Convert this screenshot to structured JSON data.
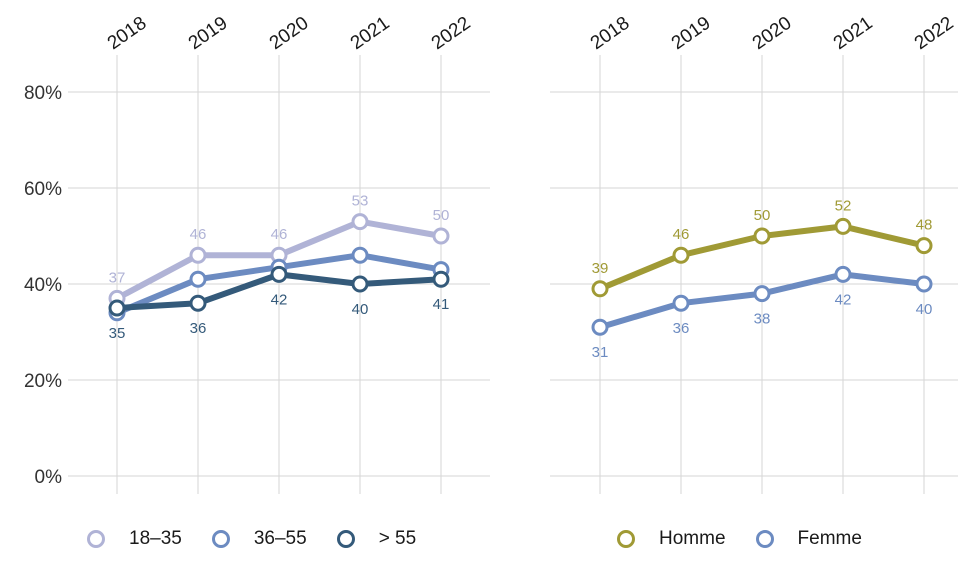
{
  "chart_data": [
    {
      "type": "line",
      "x": [
        "2018",
        "2019",
        "2020",
        "2021",
        "2022"
      ],
      "ylim": [
        0,
        80
      ],
      "yticks": [
        "0%",
        "20%",
        "40%",
        "60%",
        "80%"
      ],
      "ytick_values": [
        0,
        20,
        40,
        60,
        80
      ],
      "grid": true,
      "legend_position": "bottom",
      "series": [
        {
          "name": "18–35",
          "color": "#b0b3d6",
          "values": [
            37,
            46,
            46,
            53,
            50
          ],
          "labels": [
            "37",
            "46",
            "46",
            "53",
            "50"
          ],
          "label_pos": [
            "above",
            "above",
            "above",
            "above",
            "above"
          ],
          "labeled": [
            true,
            true,
            true,
            true,
            true
          ]
        },
        {
          "name": "36–55",
          "color": "#6c8bc1",
          "values": [
            34,
            41,
            43.5,
            46,
            43
          ],
          "labels": [
            "",
            "",
            "",
            "",
            ""
          ],
          "label_pos": [
            "below",
            "below",
            "below",
            "below",
            "below"
          ],
          "labeled": [
            false,
            false,
            false,
            false,
            false
          ]
        },
        {
          "name": "> 55",
          "color": "#345a7a",
          "values": [
            35,
            36,
            42,
            40,
            41
          ],
          "labels": [
            "35",
            "36",
            "42",
            "40",
            "41"
          ],
          "label_pos": [
            "below",
            "below",
            "below",
            "below",
            "below"
          ],
          "labeled": [
            true,
            true,
            true,
            true,
            true
          ]
        }
      ]
    },
    {
      "type": "line",
      "x": [
        "2018",
        "2019",
        "2020",
        "2021",
        "2022"
      ],
      "ylim": [
        0,
        80
      ],
      "ytick_values": [
        0,
        20,
        40,
        60,
        80
      ],
      "grid": true,
      "legend_position": "bottom",
      "series": [
        {
          "name": "Homme",
          "color": "#a09a35",
          "values": [
            39,
            46,
            50,
            52,
            48
          ],
          "labels": [
            "39",
            "46",
            "50",
            "52",
            "48"
          ],
          "label_pos": [
            "above",
            "above",
            "above",
            "above",
            "above"
          ],
          "labeled": [
            true,
            true,
            true,
            true,
            true
          ]
        },
        {
          "name": "Femme",
          "color": "#6c8bc1",
          "values": [
            31,
            36,
            38,
            42,
            40
          ],
          "labels": [
            "31",
            "36",
            "38",
            "42",
            "40"
          ],
          "label_pos": [
            "below",
            "below",
            "below",
            "below",
            "below"
          ],
          "labeled": [
            true,
            true,
            true,
            true,
            true
          ]
        }
      ]
    }
  ]
}
